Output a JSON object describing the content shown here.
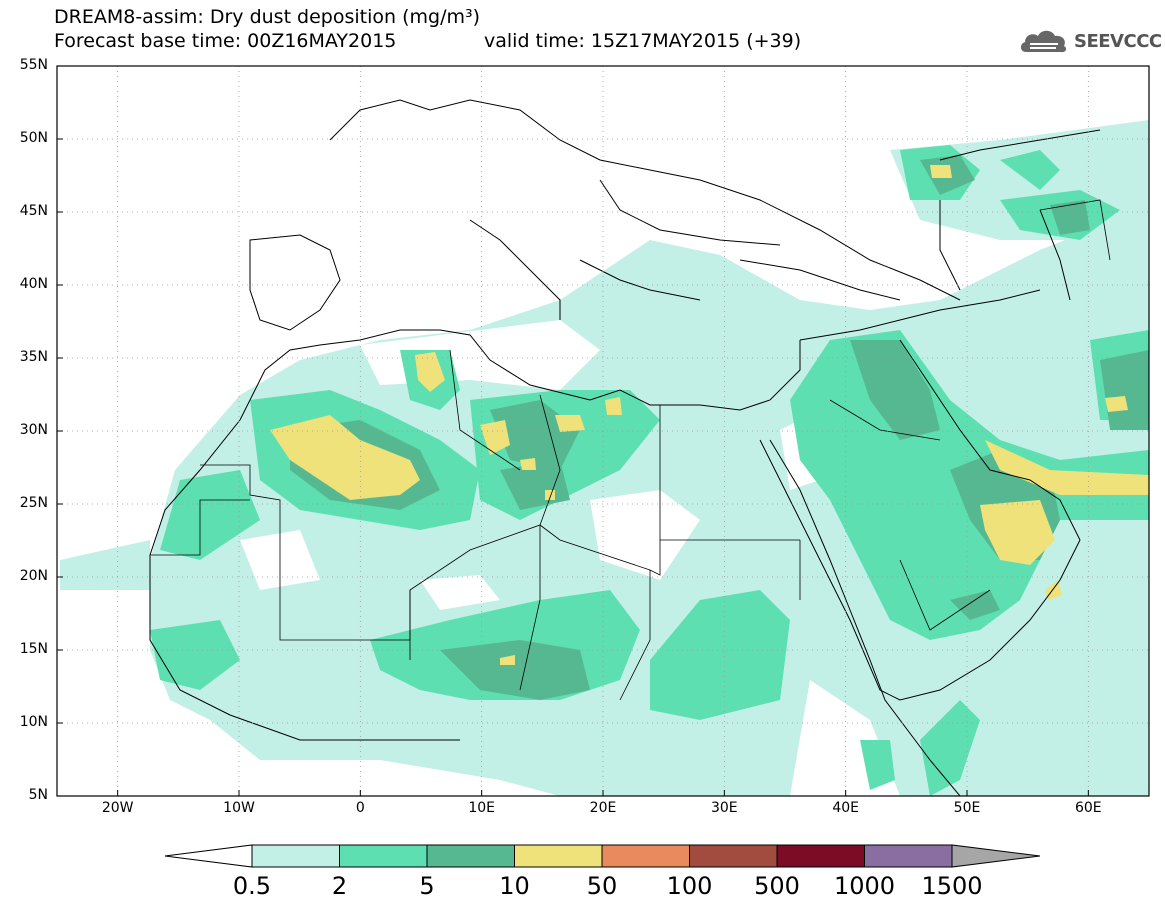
{
  "title": {
    "line1": "DREAM8-assim: Dry dust deposition (mg/m³)",
    "line2": "Forecast base time: 00Z16MAY2015",
    "valid": "valid time: 15Z17MAY2015 (+39)"
  },
  "logo": {
    "text": "SEEVCCC",
    "icon": "cloud-logo-icon"
  },
  "axes": {
    "lat_labels": [
      "55N",
      "50N",
      "45N",
      "40N",
      "35N",
      "30N",
      "25N",
      "20N",
      "15N",
      "10N",
      "5N"
    ],
    "lon_labels": [
      "20W",
      "10W",
      "0",
      "10E",
      "20E",
      "30E",
      "40E",
      "50E",
      "60E"
    ]
  },
  "colorbar": {
    "labels": [
      "0.5",
      "2",
      "5",
      "10",
      "50",
      "100",
      "500",
      "1000",
      "1500"
    ],
    "colors": [
      "#c2f0e6",
      "#5ddfb1",
      "#56b891",
      "#efe27a",
      "#e88a5c",
      "#a24b3f",
      "#7c0c26",
      "#8a6ea2",
      "#a6a6a6"
    ]
  }
}
